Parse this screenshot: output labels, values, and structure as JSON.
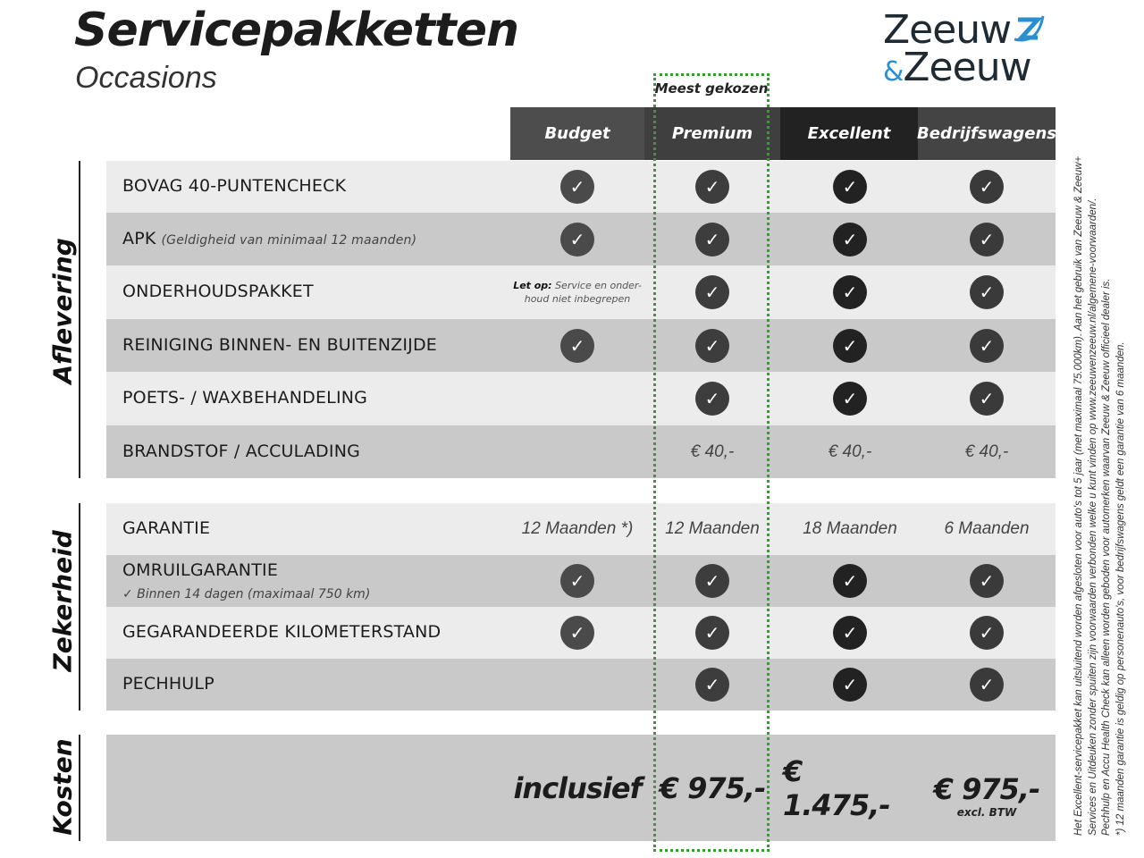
{
  "title": "Servicepakketten",
  "subtitle": "Occasions",
  "logo": {
    "line1": "Zeeuw",
    "line2_amp": "&",
    "line2": "Zeeuw",
    "colors": {
      "text": "#1f2a33",
      "accent": "#2a8fd0"
    }
  },
  "highlight_label": "Meest gekozen",
  "highlight_color": "#3a9a3a",
  "columns": [
    {
      "label": "Budget",
      "color": "#4d4d4d",
      "check_color": "#4a4a4a"
    },
    {
      "label": "Premium",
      "color": "#3f3f3f",
      "check_color": "#3d3d3d"
    },
    {
      "label": "Excellent",
      "color": "#222222",
      "check_color": "#222222"
    },
    {
      "label": "Bedrijfswagens",
      "color": "#444444",
      "check_color": "#3a3a3a"
    }
  ],
  "sections": {
    "aflevering": "Aflevering",
    "zekerheid": "Zekerheid",
    "kosten": "Kosten"
  },
  "rows": [
    {
      "label": "BOVAG 40-PUNTENCHECK",
      "cells": [
        "check",
        "check",
        "check",
        "check"
      ]
    },
    {
      "label": "APK",
      "note": "(Geldigheid van minimaal 12 maanden)",
      "cells": [
        "check",
        "check",
        "check",
        "check"
      ]
    },
    {
      "label": "ONDERHOUDSPAKKET",
      "budget_note_bold": "Let op:",
      "budget_note": "Service en onder- houd niet inbegrepen",
      "cells": [
        "note",
        "check",
        "check",
        "check"
      ]
    },
    {
      "label": "REINIGING BINNEN- EN BUITENZIJDE",
      "cells": [
        "check",
        "check",
        "check",
        "check"
      ]
    },
    {
      "label": "POETS- / WAXBEHANDELING",
      "cells": [
        "",
        "check",
        "check",
        "check"
      ]
    },
    {
      "label": "BRANDSTOF / ACCULADING",
      "cells": [
        "",
        "€ 40,-",
        "€ 40,-",
        "€ 40,-"
      ]
    },
    {
      "label": "GARANTIE",
      "cells": [
        "12 Maanden *)",
        "12 Maanden",
        "18 Maanden",
        "6 Maanden"
      ]
    },
    {
      "label": "OMRUILGARANTIE",
      "sub": "✓   Binnen 14 dagen (maximaal 750 km)",
      "cells": [
        "check",
        "check",
        "check",
        "check"
      ]
    },
    {
      "label": "GEGARANDEERDE KILOMETERSTAND",
      "cells": [
        "check",
        "check",
        "check",
        "check"
      ]
    },
    {
      "label": "PECHHULP",
      "cells": [
        "",
        "check",
        "check",
        "check"
      ]
    }
  ],
  "costs": [
    "inclusief",
    "€ 975,-",
    "€ 1.475,-",
    "€ 975,-"
  ],
  "costs_note": "excl. BTW",
  "footnotes": [
    "Het Excellent-servicepakket kan uitsluitend worden afgesloten voor auto's tot 5 jaar (met maximaal 75.000km). Aan het gebruik van Zeeuw & Zeeuw+",
    "Services en Uitdeuken zonder spuiten zijn voorwaarden verbonden welke u kunt vinden op www.zeeuwenzeeuw.nl/algemene-voorwaarden/.",
    "Pechhulp en Accu Health Check kan alleen worden geboden voor automerken waarvan Zeeuw & Zeeuw officieel dealer is.",
    "*) 12 maanden garantie is geldig op personenauto's, voor bedrijfswagens geldt een garantie van 6 maanden."
  ]
}
